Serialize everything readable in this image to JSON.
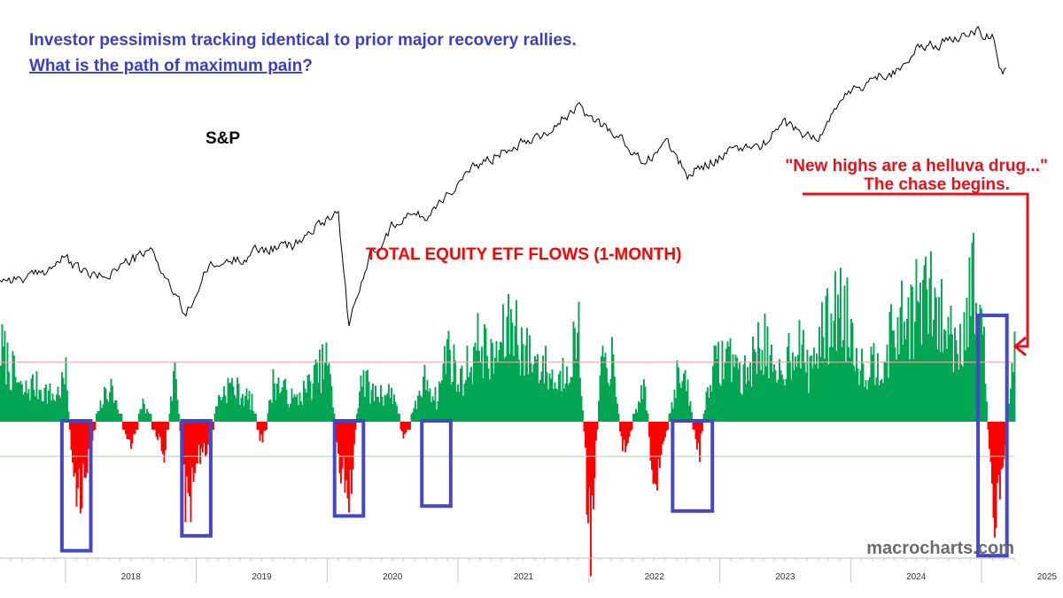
{
  "headline": {
    "line1": "Investor pessimism tracking identical to prior major recovery rallies.",
    "line2": "What is the path of maximum pain",
    "line2_suffix": "?",
    "color": "#3b3fc4"
  },
  "labels": {
    "sp": "S&P",
    "flows_title": "TOTAL EQUITY ETF FLOWS (1-MONTH)",
    "quote": "\"New highs are a helluva drug...\"",
    "chase": "The chase begins.",
    "watermark": "macrocharts.com"
  },
  "colors": {
    "positive": "#00a651",
    "negative": "#ff0000",
    "annotation": "#e8101a",
    "box": "#4547c8",
    "upper_threshold": "#f4a6a6",
    "lower_threshold": "#a8e0b0",
    "price_line": "#000000",
    "watermark": "#6b6b6b"
  },
  "chart_data": [
    {
      "type": "line",
      "name": "S&P",
      "x_range": [
        "2017-07",
        "2025-04"
      ],
      "x": [
        "2017-07",
        "2017-10",
        "2018-01",
        "2018-02",
        "2018-04",
        "2018-07",
        "2018-09",
        "2018-12",
        "2019-02",
        "2019-05",
        "2019-07",
        "2019-10",
        "2020-01",
        "2020-02",
        "2020-03",
        "2020-05",
        "2020-08",
        "2020-10",
        "2020-12",
        "2021-03",
        "2021-06",
        "2021-09",
        "2021-12",
        "2022-01",
        "2022-03",
        "2022-06",
        "2022-08",
        "2022-10",
        "2022-12",
        "2023-02",
        "2023-05",
        "2023-07",
        "2023-10",
        "2023-12",
        "2024-03",
        "2024-05",
        "2024-07",
        "2024-10",
        "2024-12",
        "2025-02",
        "2025-03",
        "2025-04"
      ],
      "y_rel": [
        0.05,
        0.05,
        0.12,
        0.08,
        0.05,
        0.11,
        0.14,
        -0.08,
        0.08,
        0.12,
        0.15,
        0.16,
        0.26,
        0.28,
        -0.12,
        0.14,
        0.27,
        0.26,
        0.34,
        0.44,
        0.51,
        0.55,
        0.63,
        0.6,
        0.56,
        0.44,
        0.52,
        0.4,
        0.45,
        0.48,
        0.51,
        0.58,
        0.52,
        0.66,
        0.73,
        0.76,
        0.83,
        0.86,
        0.91,
        0.87,
        0.73,
        0.9
      ]
    },
    {
      "type": "bar",
      "name": "TOTAL EQUITY ETF FLOWS (1-MONTH)",
      "x_range": [
        "2017-07",
        "2025-04"
      ],
      "x": [
        "2017-07",
        "2017-09",
        "2017-10",
        "2017-12",
        "2018-01",
        "2018-02",
        "2018-03",
        "2018-04",
        "2018-05",
        "2018-07",
        "2018-08",
        "2018-10",
        "2018-11",
        "2018-12",
        "2019-01",
        "2019-02",
        "2019-03",
        "2019-04",
        "2019-06",
        "2019-07",
        "2019-08",
        "2019-10",
        "2019-11",
        "2020-01",
        "2020-02",
        "2020-03",
        "2020-04",
        "2020-05",
        "2020-07",
        "2020-08",
        "2020-10",
        "2020-11",
        "2020-12",
        "2021-01",
        "2021-03",
        "2021-04",
        "2021-06",
        "2021-07",
        "2021-09",
        "2021-10",
        "2021-12",
        "2022-01",
        "2022-02",
        "2022-03",
        "2022-04",
        "2022-06",
        "2022-07",
        "2022-09",
        "2022-10",
        "2022-11",
        "2022-12",
        "2023-02",
        "2023-03",
        "2023-05",
        "2023-06",
        "2023-08",
        "2023-09",
        "2023-10",
        "2023-12",
        "2024-01",
        "2024-02",
        "2024-04",
        "2024-05",
        "2024-07",
        "2024-08",
        "2024-09",
        "2024-11",
        "2024-12",
        "2025-01",
        "2025-02",
        "2025-03",
        "2025-04"
      ],
      "values": [
        0.9,
        0.35,
        0.45,
        0.3,
        0.55,
        -1.2,
        -0.4,
        0.15,
        0.45,
        -0.35,
        0.25,
        -0.35,
        0.6,
        -1.1,
        -0.5,
        -0.3,
        0.3,
        0.45,
        0.25,
        -0.3,
        0.5,
        0.25,
        0.4,
        0.75,
        -0.5,
        -0.9,
        0.6,
        0.35,
        0.35,
        -0.2,
        0.55,
        0.25,
        0.95,
        0.45,
        1.0,
        0.7,
        1.25,
        0.85,
        0.65,
        0.45,
        1.05,
        -1.5,
        0.6,
        0.8,
        -0.4,
        0.45,
        -0.9,
        0.55,
        0.4,
        -0.45,
        0.6,
        0.85,
        0.5,
        1.05,
        0.45,
        1.05,
        0.6,
        0.95,
        1.45,
        1.1,
        0.65,
        0.8,
        1.1,
        1.4,
        1.55,
        1.25,
        0.95,
        1.75,
        1.2,
        -1.1,
        -0.5,
        1.05
      ],
      "threshold_upper": 0.6,
      "threshold_lower": -0.35
    }
  ],
  "x_axis": {
    "ticks": [
      "2018",
      "2019",
      "2020",
      "2021",
      "2022",
      "2023",
      "2024",
      "2025"
    ]
  },
  "boxes": [
    {
      "start": "2018-01",
      "end": "2018-03",
      "bottom": -1.3
    },
    {
      "start": "2018-12",
      "end": "2019-02",
      "bottom": -1.15
    },
    {
      "start": "2020-02",
      "end": "2020-04",
      "bottom": -0.95
    },
    {
      "start": "2020-10",
      "end": "2020-12",
      "bottom": -0.85
    },
    {
      "start": "2022-09",
      "end": "2022-12",
      "bottom": -0.9
    },
    {
      "start": "2025-01",
      "end": "2025-03",
      "bottom": -1.35
    }
  ]
}
